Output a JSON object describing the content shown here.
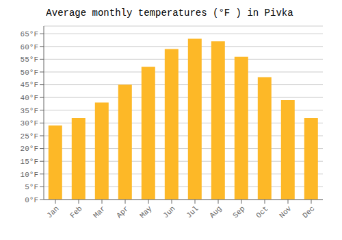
{
  "chart_data": {
    "type": "bar",
    "title": "Average monthly temperatures (°F ) in Pivka",
    "categories": [
      "Jan",
      "Feb",
      "Mar",
      "Apr",
      "May",
      "Jun",
      "Jul",
      "Aug",
      "Sep",
      "Oct",
      "Nov",
      "Dec"
    ],
    "values": [
      29,
      32,
      38,
      45,
      52,
      59,
      63,
      62,
      56,
      48,
      39,
      32
    ],
    "color": "#FDB827",
    "ylim": [
      0,
      68
    ],
    "yticks": [
      {
        "value": 0,
        "label": "0°F"
      },
      {
        "value": 5,
        "label": "5°F"
      },
      {
        "value": 10,
        "label": "10°F"
      },
      {
        "value": 15,
        "label": "15°F"
      },
      {
        "value": 20,
        "label": "20°F"
      },
      {
        "value": 25,
        "label": "25°F"
      },
      {
        "value": 30,
        "label": "30°F"
      },
      {
        "value": 35,
        "label": "35°F"
      },
      {
        "value": 40,
        "label": "40°F"
      },
      {
        "value": 45,
        "label": "45°F"
      },
      {
        "value": 50,
        "label": "50°F"
      },
      {
        "value": 55,
        "label": "55°F"
      },
      {
        "value": 60,
        "label": "60°F"
      },
      {
        "value": 65,
        "label": "65°F"
      }
    ],
    "grid": true
  }
}
